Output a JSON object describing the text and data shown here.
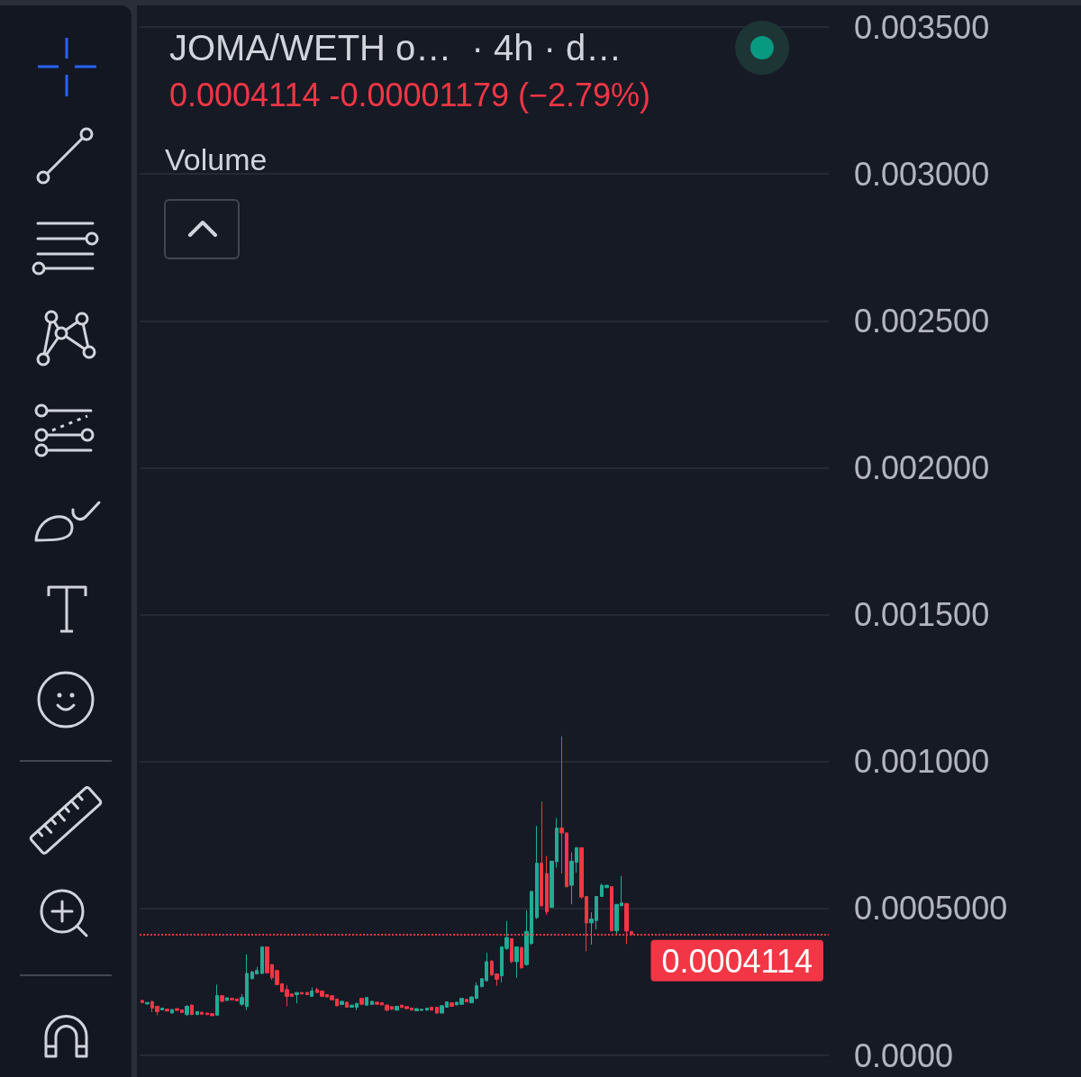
{
  "chart_data": {
    "type": "candlestick",
    "title": "JOMA/WETH o…  · 4h · d…",
    "subtitle": "0.0004114 -0.00001179 (−2.79%)",
    "annotations": [
      "Volume"
    ],
    "categories": [
      null,
      null,
      null,
      null,
      null,
      null,
      null,
      null,
      null,
      null,
      null,
      null,
      null,
      null,
      null,
      null,
      null,
      null,
      null,
      null,
      null,
      null,
      null,
      null,
      null,
      null,
      null,
      null,
      null,
      null,
      null,
      null,
      null,
      null,
      null,
      null,
      null,
      null,
      null,
      null,
      null,
      null,
      null,
      null,
      null,
      null,
      null,
      null,
      null,
      null,
      null,
      null,
      null,
      null,
      null,
      null,
      null,
      null,
      null,
      null,
      null,
      null,
      null,
      null,
      null,
      null,
      null,
      null,
      null,
      null,
      null,
      null,
      null,
      null,
      null,
      null,
      null,
      null,
      null,
      null,
      null,
      null,
      null,
      null,
      null,
      null,
      null,
      null,
      null,
      null,
      null,
      null,
      null,
      null,
      null,
      null,
      null,
      null,
      null,
      null,
      null,
      null,
      null,
      null,
      null,
      null,
      null,
      null,
      null,
      null,
      null,
      null,
      null,
      null,
      null,
      null,
      null,
      null,
      null,
      null,
      null,
      null,
      null,
      null,
      null,
      null,
      null,
      null,
      null,
      null,
      null,
      null,
      null,
      null,
      null,
      null,
      null,
      null
    ],
    "ohlc": [
      [
        0.000187,
        0.000189,
        0.000178,
        0.00018
      ],
      [
        0.000175,
        0.000181,
        0.000174,
        0.00018
      ],
      [
        0.000183,
        0.000186,
        0.000147,
        0.000161
      ],
      [
        0.000167,
        0.000167,
        0.000136,
        0.000149
      ],
      [
        0.000155,
        0.000162,
        0.000154,
        0.000161
      ],
      [
        0.000157,
        0.000158,
        0.00015,
        0.000151
      ],
      [
        0.000144,
        0.000157,
        0.000143,
        0.000156
      ],
      [
        0.000159,
        0.00016,
        0.000152,
        0.000153
      ],
      [
        0.000155,
        0.000156,
        0.000145,
        0.000146
      ],
      [
        0.000139,
        0.000171,
        0.000134,
        0.000167
      ],
      [
        0.000171,
        0.000174,
        0.000137,
        0.000139
      ],
      [
        0.000139,
        0.00015,
        0.000138,
        0.000149
      ],
      [
        0.000147,
        0.000148,
        0.000139,
        0.00014
      ],
      [
        0.000144,
        0.000145,
        0.000137,
        0.000139
      ],
      [
        0.000142,
        0.000143,
        0.000134,
        0.000135
      ],
      [
        0.000137,
        0.000241,
        0.000136,
        0.000204
      ],
      [
        0.000203,
        0.000205,
        0.000182,
        0.000184
      ],
      [
        0.000187,
        0.000197,
        0.000186,
        0.000196
      ],
      [
        0.000194,
        0.000195,
        0.000188,
        0.000189
      ],
      [
        0.000192,
        0.000193,
        0.000185,
        0.000186
      ],
      [
        0.000174,
        0.000209,
        0.000169,
        0.000197
      ],
      [
        0.000167,
        0.000344,
        0.000154,
        0.000279
      ],
      [
        0.000261,
        0.000288,
        0.000259,
        0.000284
      ],
      [
        0.000277,
        0.000301,
        0.000276,
        0.000289
      ],
      [
        0.000279,
        0.00037,
        0.000277,
        0.000369
      ],
      [
        0.000369,
        0.00037,
        0.000279,
        0.000281
      ],
      [
        0.000309,
        0.000311,
        0.000257,
        0.000264
      ],
      [
        0.000289,
        0.000291,
        0.000239,
        0.000241
      ],
      [
        0.000244,
        0.000245,
        0.000215,
        0.000217
      ],
      [
        0.000224,
        0.000239,
        0.000167,
        0.000201
      ],
      [
        0.000209,
        0.00021,
        0.0002,
        0.000201
      ],
      [
        0.000207,
        0.000215,
        0.000177,
        0.000214
      ],
      [
        0.000214,
        0.000215,
        0.000208,
        0.000209
      ],
      [
        0.000214,
        0.000215,
        0.000206,
        0.000207
      ],
      [
        0.000201,
        0.000231,
        0.0002,
        0.000219
      ],
      [
        0.000224,
        0.000231,
        0.000213,
        0.000214
      ],
      [
        0.000219,
        0.00022,
        0.000199,
        0.000201
      ],
      [
        0.000207,
        0.000208,
        0.000198,
        0.000199
      ],
      [
        0.000203,
        0.000204,
        0.000188,
        0.000189
      ],
      [
        0.000192,
        0.000193,
        0.000167,
        0.000169
      ],
      [
        0.000173,
        0.000185,
        0.000172,
        0.000184
      ],
      [
        0.000181,
        0.000182,
        0.000163,
        0.000164
      ],
      [
        0.000164,
        0.000172,
        0.000163,
        0.000171
      ],
      [
        0.000164,
        0.000178,
        0.000154,
        0.000177
      ],
      [
        0.000194,
        0.000195,
        0.000172,
        0.000174
      ],
      [
        0.000171,
        0.000198,
        0.00017,
        0.000197
      ],
      [
        0.000173,
        0.000185,
        0.000172,
        0.000184
      ],
      [
        0.000181,
        0.000182,
        0.000173,
        0.000174
      ],
      [
        0.000179,
        0.00018,
        0.000171,
        0.000172
      ],
      [
        0.000171,
        0.000174,
        0.00015,
        0.000154
      ],
      [
        0.000166,
        0.000168,
        0.000155,
        0.000157
      ],
      [
        0.000154,
        0.000168,
        0.000153,
        0.000167
      ],
      [
        0.000171,
        0.000172,
        0.000162,
        0.000163
      ],
      [
        0.000166,
        0.000167,
        0.000158,
        0.000159
      ],
      [
        0.000161,
        0.000162,
        0.000153,
        0.000154
      ],
      [
        0.000152,
        0.00016,
        0.000151,
        0.000159
      ],
      [
        0.000153,
        0.000158,
        0.000152,
        0.000157
      ],
      [
        0.000154,
        0.000162,
        0.000153,
        0.000161
      ],
      [
        0.000164,
        0.000165,
        0.000153,
        0.000154
      ],
      [
        0.000164,
        0.000165,
        0.000141,
        0.000144
      ],
      [
        0.000144,
        0.000171,
        0.000143,
        0.000169
      ],
      [
        0.000164,
        0.000183,
        0.000163,
        0.000182
      ],
      [
        0.000179,
        0.00018,
        0.000166,
        0.000167
      ],
      [
        0.000172,
        0.000182,
        0.000171,
        0.000181
      ],
      [
        0.000174,
        0.000195,
        0.000173,
        0.000194
      ],
      [
        0.000191,
        0.000192,
        0.000181,
        0.000182
      ],
      [
        0.000179,
        0.0002,
        0.000178,
        0.000199
      ],
      [
        0.000194,
        0.000249,
        0.000191,
        0.000237
      ],
      [
        0.000234,
        0.000262,
        0.000232,
        0.000261
      ],
      [
        0.000254,
        0.000349,
        0.000251,
        0.000319
      ],
      [
        0.000321,
        0.000324,
        0.000271,
        0.000274
      ],
      [
        0.000277,
        0.000279,
        0.000237,
        0.000259
      ],
      [
        0.000271,
        0.00037,
        0.000249,
        0.000369
      ],
      [
        0.000364,
        0.000457,
        0.000359,
        0.000401
      ],
      [
        0.000397,
        0.000398,
        0.000314,
        0.000319
      ],
      [
        0.000319,
        0.00037,
        0.000264,
        0.000369
      ],
      [
        0.000367,
        0.000369,
        0.000294,
        0.000299
      ],
      [
        0.000309,
        0.000494,
        0.000305,
        0.000422
      ],
      [
        0.000381,
        0.00056,
        0.000376,
        0.000558
      ],
      [
        0.000469,
        0.000781,
        0.000464,
        0.000654
      ],
      [
        0.000654,
        0.000864,
        0.000507,
        0.000509
      ],
      [
        0.000619,
        0.000679,
        0.000479,
        0.000489
      ],
      [
        0.000504,
        0.000662,
        0.000502,
        0.000661
      ],
      [
        0.000659,
        0.000807,
        0.000639,
        0.000774
      ],
      [
        0.000774,
        0.001086,
        0.000619,
        0.000757
      ],
      [
        0.000757,
        0.000759,
        0.000572,
        0.000574
      ],
      [
        0.000579,
        0.000691,
        0.000514,
        0.000661
      ],
      [
        0.000657,
        0.000708,
        0.000622,
        0.000707
      ],
      [
        0.000707,
        0.000708,
        0.000534,
        0.000539
      ],
      [
        0.000541,
        0.000542,
        0.000354,
        0.000451
      ],
      [
        0.000451,
        0.000487,
        0.000377,
        0.000464
      ],
      [
        0.000459,
        0.000542,
        0.000429,
        0.000541
      ],
      [
        0.000541,
        0.000584,
        0.000539,
        0.000579
      ],
      [
        0.000571,
        0.00058,
        0.000569,
        0.000579
      ],
      [
        0.000574,
        0.000576,
        0.000422,
        0.000424
      ],
      [
        0.000424,
        0.000515,
        0.000409,
        0.000514
      ],
      [
        0.000509,
        0.000611,
        0.000508,
        0.000519
      ],
      [
        0.000517,
        0.000518,
        0.000379,
        0.0004232
      ],
      [
        0.000421,
        0.000424,
        0.000407,
        0.0004114
      ],
      null,
      null,
      null,
      null,
      null,
      null,
      null,
      null,
      null,
      null,
      null,
      null,
      null,
      null,
      null,
      null,
      null,
      null,
      null,
      null,
      null,
      null,
      null,
      null,
      null,
      null,
      null,
      null,
      null,
      null,
      null,
      null,
      null,
      null,
      null,
      null,
      null,
      null,
      null
    ],
    "colors": [
      "#f23645",
      "#22ab94",
      "#f23645",
      "#f23645",
      "#22ab94",
      "#f23645",
      "#22ab94",
      "#f23645",
      "#f23645",
      "#22ab94",
      "#f23645",
      "#22ab94",
      "#f23645",
      "#f23645",
      "#f23645",
      "#22ab94",
      "#f23645",
      "#22ab94",
      "#f23645",
      "#f23645",
      "#22ab94",
      "#22ab94",
      "#22ab94",
      "#22ab94",
      "#22ab94",
      "#f23645",
      "#f23645",
      "#f23645",
      "#f23645",
      "#f23645",
      "#f23645",
      "#22ab94",
      "#f23645",
      "#f23645",
      "#22ab94",
      "#f23645",
      "#f23645",
      "#f23645",
      "#f23645",
      "#f23645",
      "#22ab94",
      "#f23645",
      "#22ab94",
      "#22ab94",
      "#f23645",
      "#22ab94",
      "#22ab94",
      "#f23645",
      "#f23645",
      "#f23645",
      "#f23645",
      "#22ab94",
      "#f23645",
      "#f23645",
      "#f23645",
      "#22ab94",
      "#22ab94",
      "#22ab94",
      "#f23645",
      "#f23645",
      "#22ab94",
      "#22ab94",
      "#f23645",
      "#22ab94",
      "#22ab94",
      "#f23645",
      "#22ab94",
      "#22ab94",
      "#22ab94",
      "#22ab94",
      "#f23645",
      "#f23645",
      "#22ab94",
      "#22ab94",
      "#f23645",
      "#22ab94",
      "#f23645",
      "#22ab94",
      "#22ab94",
      "#22ab94",
      "#f23645",
      "#f23645",
      "#22ab94",
      "#22ab94",
      "#f23645",
      "#f23645",
      "#22ab94",
      "#22ab94",
      "#f23645",
      "#f23645",
      "#22ab94",
      "#22ab94",
      "#22ab94",
      "#22ab94",
      "#f23645",
      "#22ab94",
      "#22ab94",
      "#f23645",
      "#f23645",
      null,
      null,
      null,
      null,
      null,
      null,
      null,
      null,
      null,
      null,
      null,
      null,
      null,
      null,
      null,
      null,
      null,
      null,
      null,
      null,
      null,
      null,
      null,
      null,
      null,
      null,
      null,
      null,
      null,
      null,
      null,
      null,
      null,
      null,
      null,
      null,
      null,
      null,
      null
    ],
    "ylim": [
      0,
      0.0035
    ],
    "yticks": [
      {
        "value": 0,
        "label": "0.0000"
      },
      {
        "value": 0.0005,
        "label": "0.0005000"
      },
      {
        "value": 0.001,
        "label": "0.001000"
      },
      {
        "value": 0.0015,
        "label": "0.001500"
      },
      {
        "value": 0.002,
        "label": "0.002000"
      },
      {
        "value": 0.0025,
        "label": "0.002500"
      },
      {
        "value": 0.003,
        "label": "0.003000"
      },
      {
        "value": 0.0035,
        "label": "0.003500"
      }
    ],
    "grid": "y",
    "tick_labels": "y",
    "ref_lines": [
      {
        "axis": "y",
        "value": 0.0004114,
        "label": "0.0004114",
        "color": "#f23645",
        "line_style": "dotted"
      }
    ]
  }
}
